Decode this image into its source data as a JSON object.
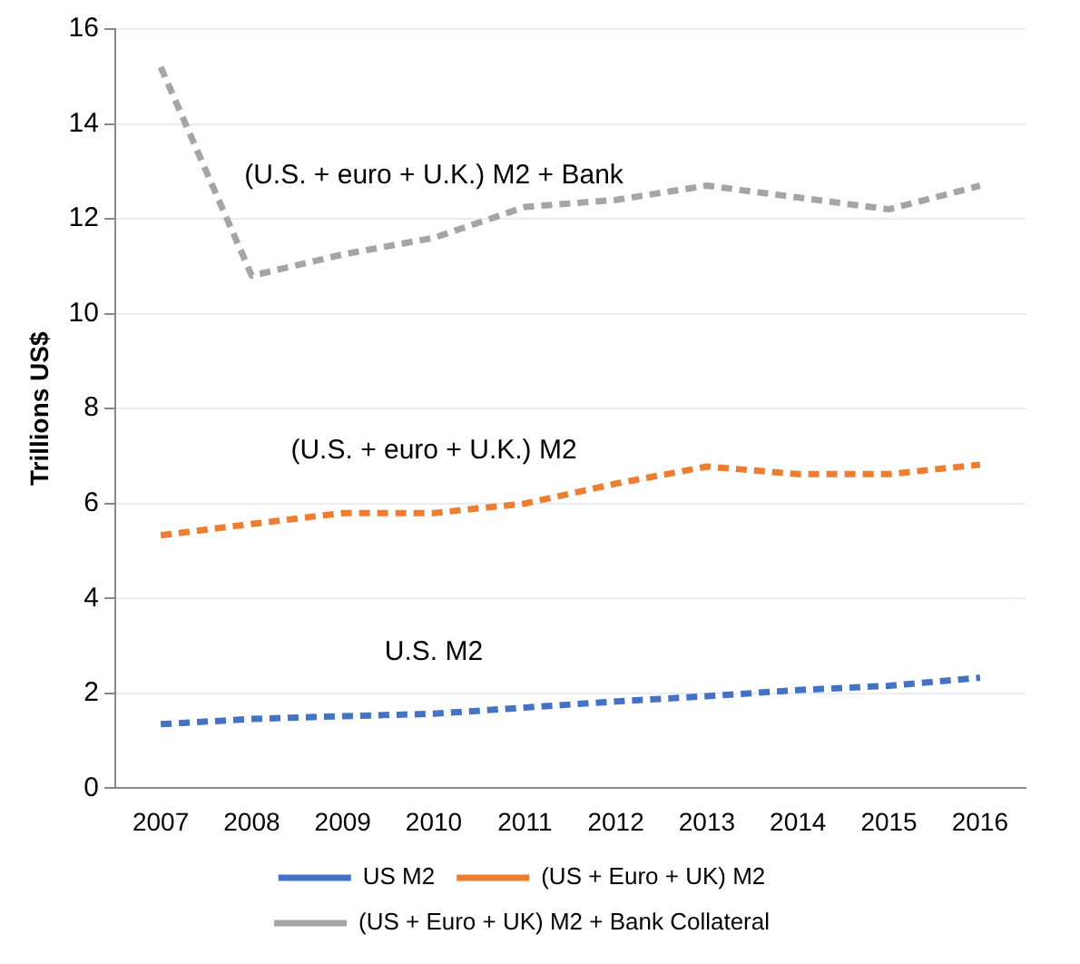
{
  "chart_data": {
    "type": "line",
    "ylabel": "Trillions US$",
    "categories": [
      "2007",
      "2008",
      "2009",
      "2010",
      "2011",
      "2012",
      "2013",
      "2014",
      "2015",
      "2016"
    ],
    "series": [
      {
        "name": "US M2",
        "color": "#4472c4",
        "values": [
          1.35,
          1.46,
          1.52,
          1.57,
          1.7,
          1.83,
          1.94,
          2.07,
          2.16,
          2.33
        ]
      },
      {
        "name": "(US + Euro + UK) M2",
        "color": "#ed7d31",
        "values": [
          5.33,
          5.57,
          5.8,
          5.8,
          6.0,
          6.42,
          6.78,
          6.62,
          6.62,
          6.82
        ]
      },
      {
        "name": "(US + Euro + UK) M2 + Bank Collateral",
        "color": "#a5a5a5",
        "values": [
          15.2,
          10.8,
          11.25,
          11.6,
          12.25,
          12.4,
          12.7,
          12.45,
          12.2,
          12.7
        ]
      }
    ],
    "ylim": [
      0,
      16
    ],
    "yticks": [
      0,
      2,
      4,
      6,
      8,
      10,
      12,
      14,
      16
    ],
    "grid": "y",
    "legend": "bottom",
    "marker": "none",
    "line_style": "dashed",
    "annotations": [
      "(U.S. + euro + U.K.) M2 + Bank",
      "(U.S. + euro + U.K.) M2",
      "U.S. M2"
    ]
  }
}
